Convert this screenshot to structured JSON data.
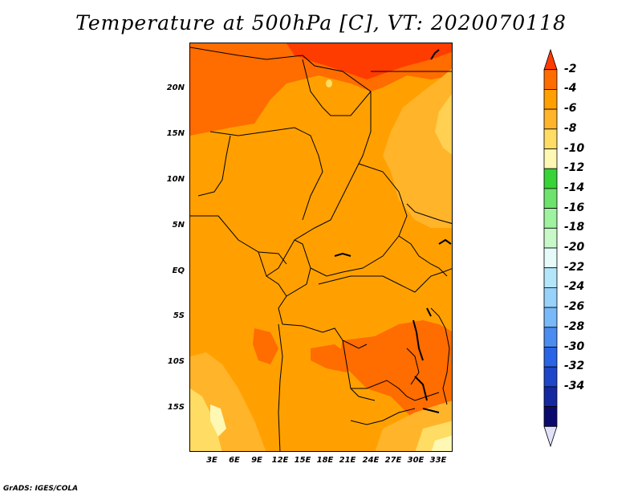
{
  "title": "Temperature at 500hPa [C], VT: 2020070118",
  "credit": "GrADS: IGES/COLA",
  "lat_labels": [
    "20N",
    "15N",
    "10N",
    "5N",
    "EQ",
    "5S",
    "10S",
    "15S"
  ],
  "lon_labels": [
    "3E",
    "6E",
    "9E",
    "12E",
    "15E",
    "18E",
    "21E",
    "24E",
    "27E",
    "30E",
    "33E"
  ],
  "colorbar": {
    "labels": [
      "-2",
      "-4",
      "-6",
      "-8",
      "-10",
      "-12",
      "-14",
      "-16",
      "-18",
      "-20",
      "-22",
      "-24",
      "-26",
      "-28",
      "-30",
      "-32",
      "-34"
    ],
    "colors": [
      "#ff3c00",
      "#ff6c00",
      "#ffa000",
      "#ffb42a",
      "#ffdc64",
      "#fff8b4",
      "#37d337",
      "#6de36d",
      "#9ff29f",
      "#c8f8c8",
      "#e6fafa",
      "#b4e6fa",
      "#96d2fa",
      "#78b9fa",
      "#4a8cf0",
      "#2964e6",
      "#1e46c8",
      "#1428a0",
      "#0a0a6e",
      "#e1e1fa"
    ]
  },
  "map_colors": {
    "warm": "#ff6c00",
    "hot": "#ff3c00",
    "base": "#ffa000",
    "cool": "#ffb42a",
    "cooler": "#ffdc64",
    "pale": "#fff8b4"
  }
}
